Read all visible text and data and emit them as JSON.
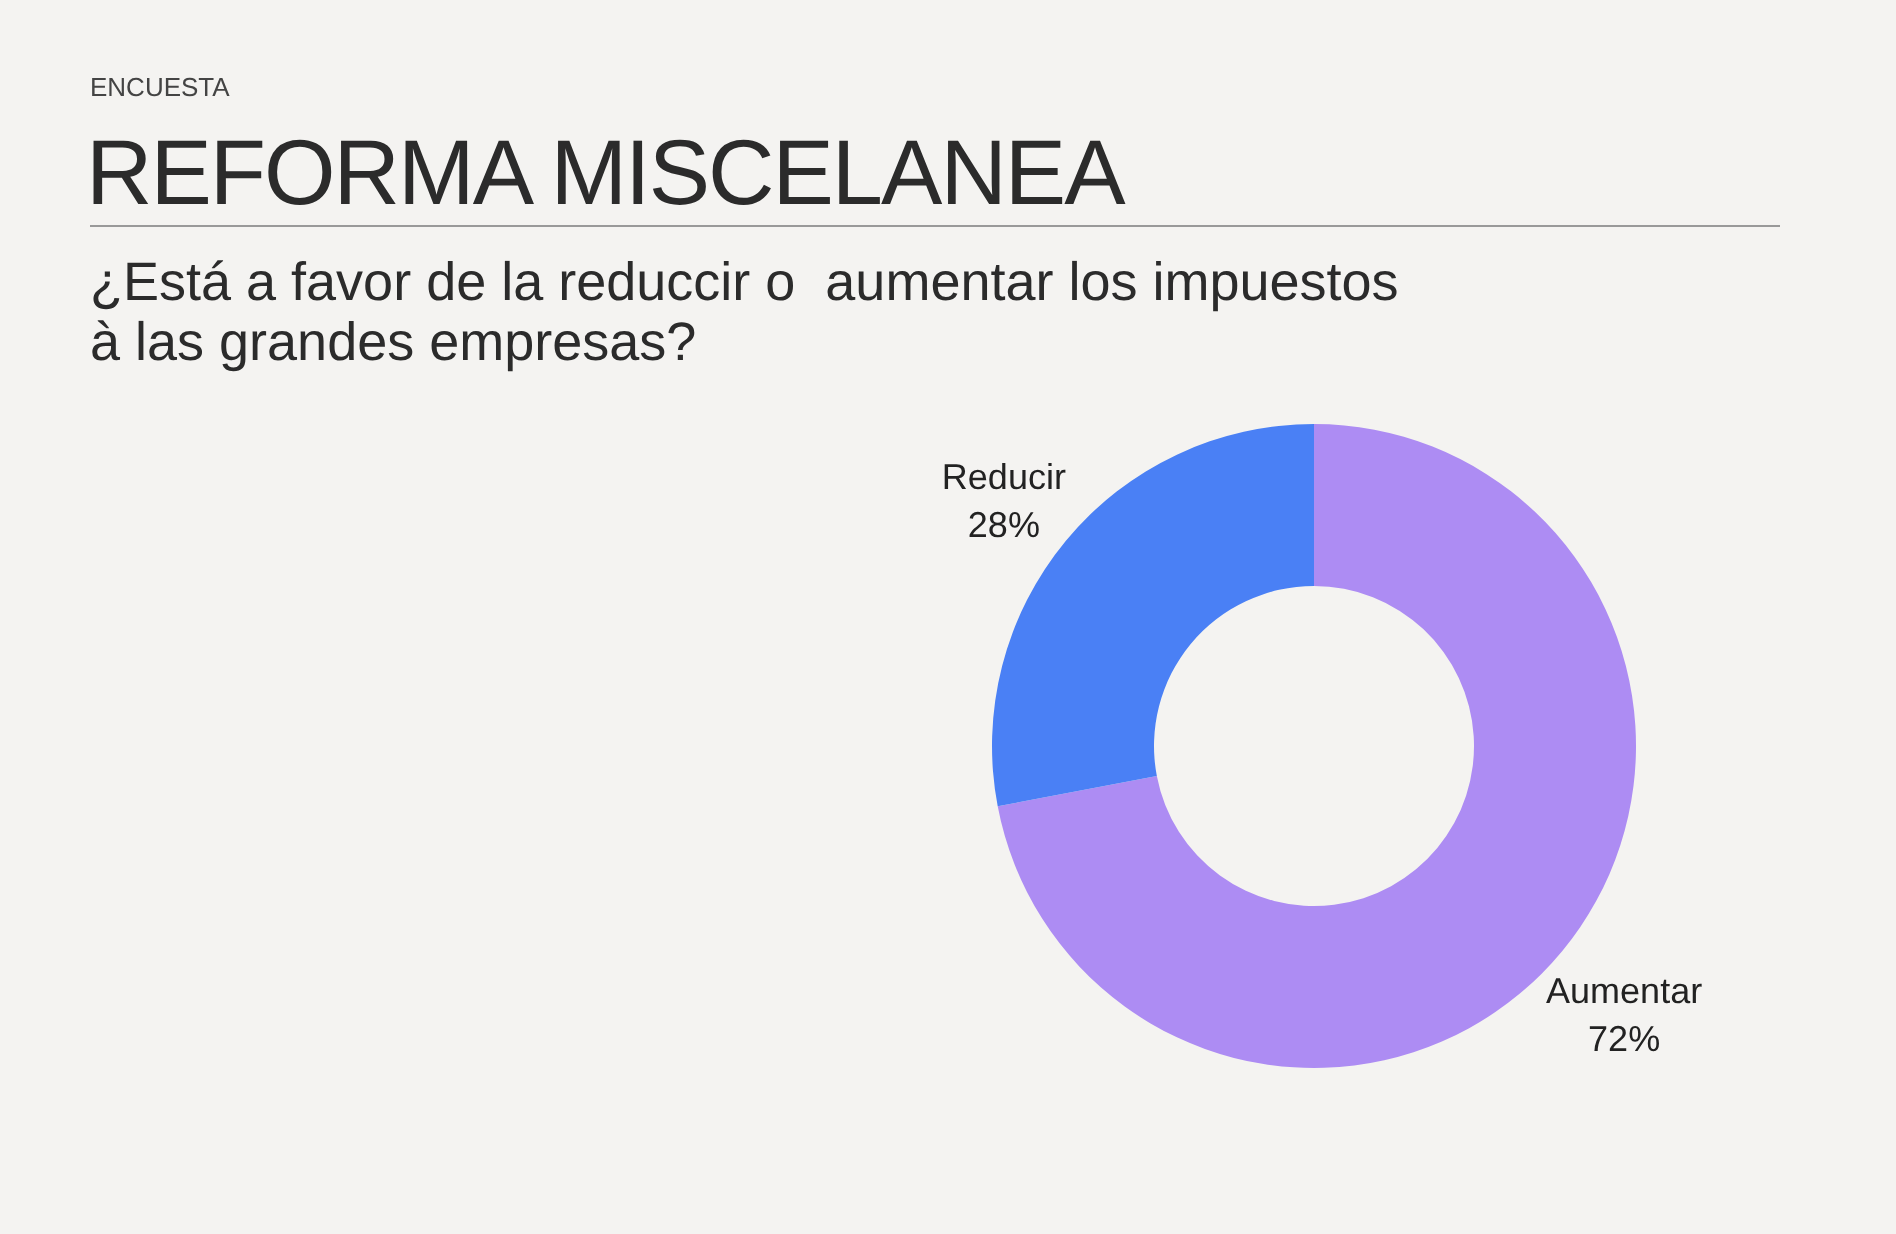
{
  "chart_data": {
    "type": "donut",
    "title": "REFORMA MISCELANEA",
    "subtitle": "¿Está a favor de la reduccir o  aumentar los impuestos\nà las grandes empresas?",
    "annotations": [
      "ENCUESTA"
    ],
    "categories": [
      "Aumentar",
      "Reducir"
    ],
    "values": [
      72,
      28
    ],
    "colors": [
      "#ad8cf3",
      "#4a80f5"
    ],
    "value_labels": [
      "72%",
      "28%"
    ]
  }
}
